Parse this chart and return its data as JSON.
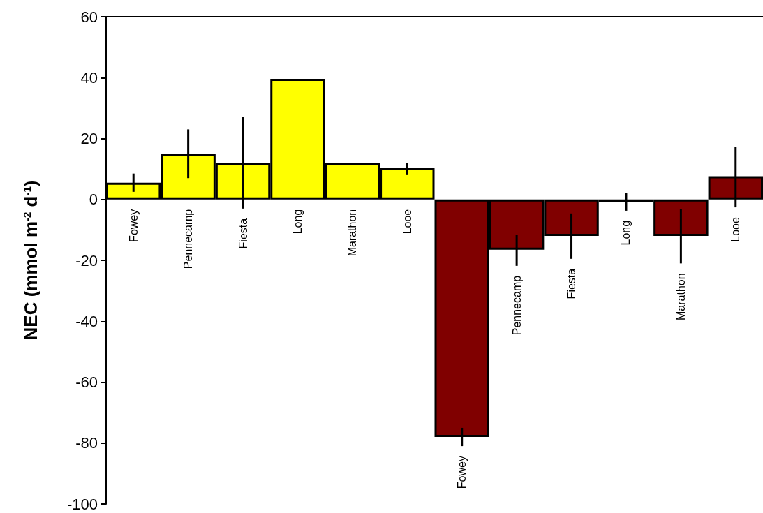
{
  "chart_data": {
    "type": "bar",
    "ylabel": "NEC (mmol m$^{-2}$ d$^{-1}$)",
    "categories": [
      "Fowey",
      "Pennecamp",
      "Fiesta",
      "Long",
      "Marathon",
      "Looe",
      "Fowey",
      "Pennecamp",
      "Fiesta",
      "Long",
      "Marathon",
      "Looe"
    ],
    "values": [
      5.5,
      15,
      12,
      39.6,
      12,
      10.3,
      -78,
      -16.5,
      -12,
      -1,
      -12,
      7.6
    ],
    "colors": [
      "#ffff00",
      "#ffff00",
      "#ffff00",
      "#ffff00",
      "#ffff00",
      "#ffff00",
      "#800000",
      "#800000",
      "#800000",
      "#800000",
      "#800000",
      "#800000"
    ],
    "errors": [
      [
        2.5,
        8.5
      ],
      [
        7,
        23
      ],
      [
        -3,
        27
      ],
      null,
      null,
      [
        8,
        12
      ],
      [
        -81,
        -75
      ],
      [
        -21.8,
        -11.7
      ],
      [
        -19.5,
        -4.6
      ],
      [
        -3.7,
        2
      ],
      [
        -21,
        -3.2
      ],
      [
        -2.6,
        17.3
      ]
    ],
    "ylim": [
      -100,
      60
    ],
    "yticks": [
      -100,
      -80,
      -60,
      -40,
      -20,
      0,
      20,
      40,
      60
    ],
    "grid": false
  }
}
